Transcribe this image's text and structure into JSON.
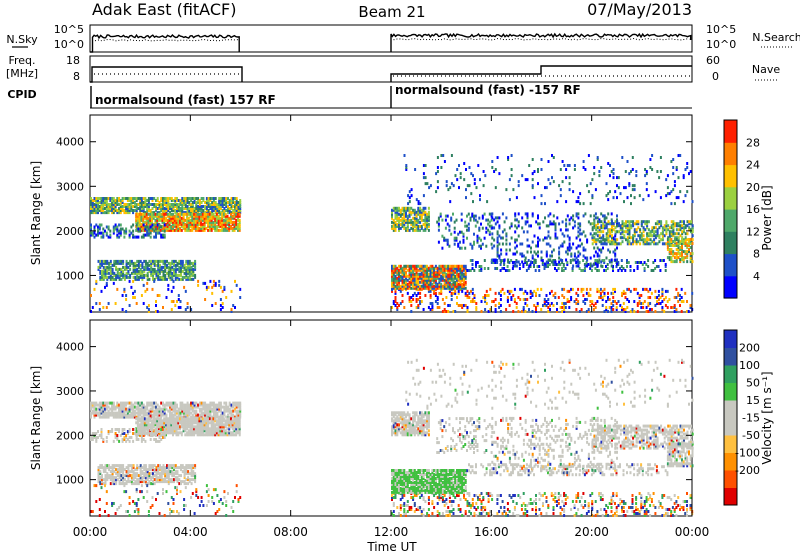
{
  "header": {
    "left_title": "Adak East (fitACF)",
    "center_title": "Beam 21",
    "right_title": "07/May/2013"
  },
  "colors": {
    "trace": "#000000",
    "axis": "#000000",
    "power_scale": [
      "#0000ff",
      "#1e50c8",
      "#2f8060",
      "#4fa86a",
      "#9bd040",
      "#ffc000",
      "#ff7f00",
      "#ff2000"
    ],
    "velocity_scale": [
      "#e00000",
      "#ff5000",
      "#ff9000",
      "#ffc040",
      "#c8c8c0",
      "#c8c8c0",
      "#40c040",
      "#30a060",
      "#3050a0",
      "#2030c0"
    ]
  },
  "panels": {
    "nsky": {
      "label": "N.Sky",
      "right_label": "N.Search",
      "ticks_left": [
        "10^5",
        "10^0"
      ],
      "ticks_right": [
        "10^5",
        "10^0"
      ]
    },
    "freq": {
      "label": "Freq.",
      "unit": "[MHz]",
      "right_label": "Nave",
      "ticks_left": [
        "18",
        "8"
      ],
      "ticks_right": [
        "60",
        "0"
      ]
    },
    "cpid": {
      "label": "CPID",
      "segments": [
        "normalsound (fast) 157 RF",
        "normalsound (fast) -157 RF"
      ]
    }
  },
  "chart_data": [
    {
      "type": "heatmap",
      "name": "Power",
      "ylabel": "Slant Range [km]",
      "colorbar_label": "Power [dB]",
      "ylim": [
        180,
        4600
      ],
      "yticks": [
        1000,
        2000,
        3000,
        4000
      ],
      "colorbar_ticks": [
        4,
        8,
        12,
        16,
        20,
        24,
        28
      ],
      "coverage": [
        {
          "start": "00:00",
          "end": "06:00"
        },
        {
          "start": "12:00",
          "end": "24:00"
        }
      ]
    },
    {
      "type": "heatmap",
      "name": "Velocity",
      "ylabel": "Slant Range [km]",
      "colorbar_label": "Velocity [m s⁻¹]",
      "ylim": [
        180,
        4600
      ],
      "yticks": [
        1000,
        2000,
        3000,
        4000
      ],
      "colorbar_ticks": [
        200,
        100,
        50,
        15,
        -15,
        -50,
        -100,
        -200
      ],
      "coverage": [
        {
          "start": "00:00",
          "end": "06:00"
        },
        {
          "start": "12:00",
          "end": "24:00"
        }
      ]
    }
  ],
  "x_axis": {
    "label": "Time UT",
    "ticks": [
      "00:00",
      "04:00",
      "08:00",
      "12:00",
      "16:00",
      "20:00",
      "00:00"
    ]
  }
}
